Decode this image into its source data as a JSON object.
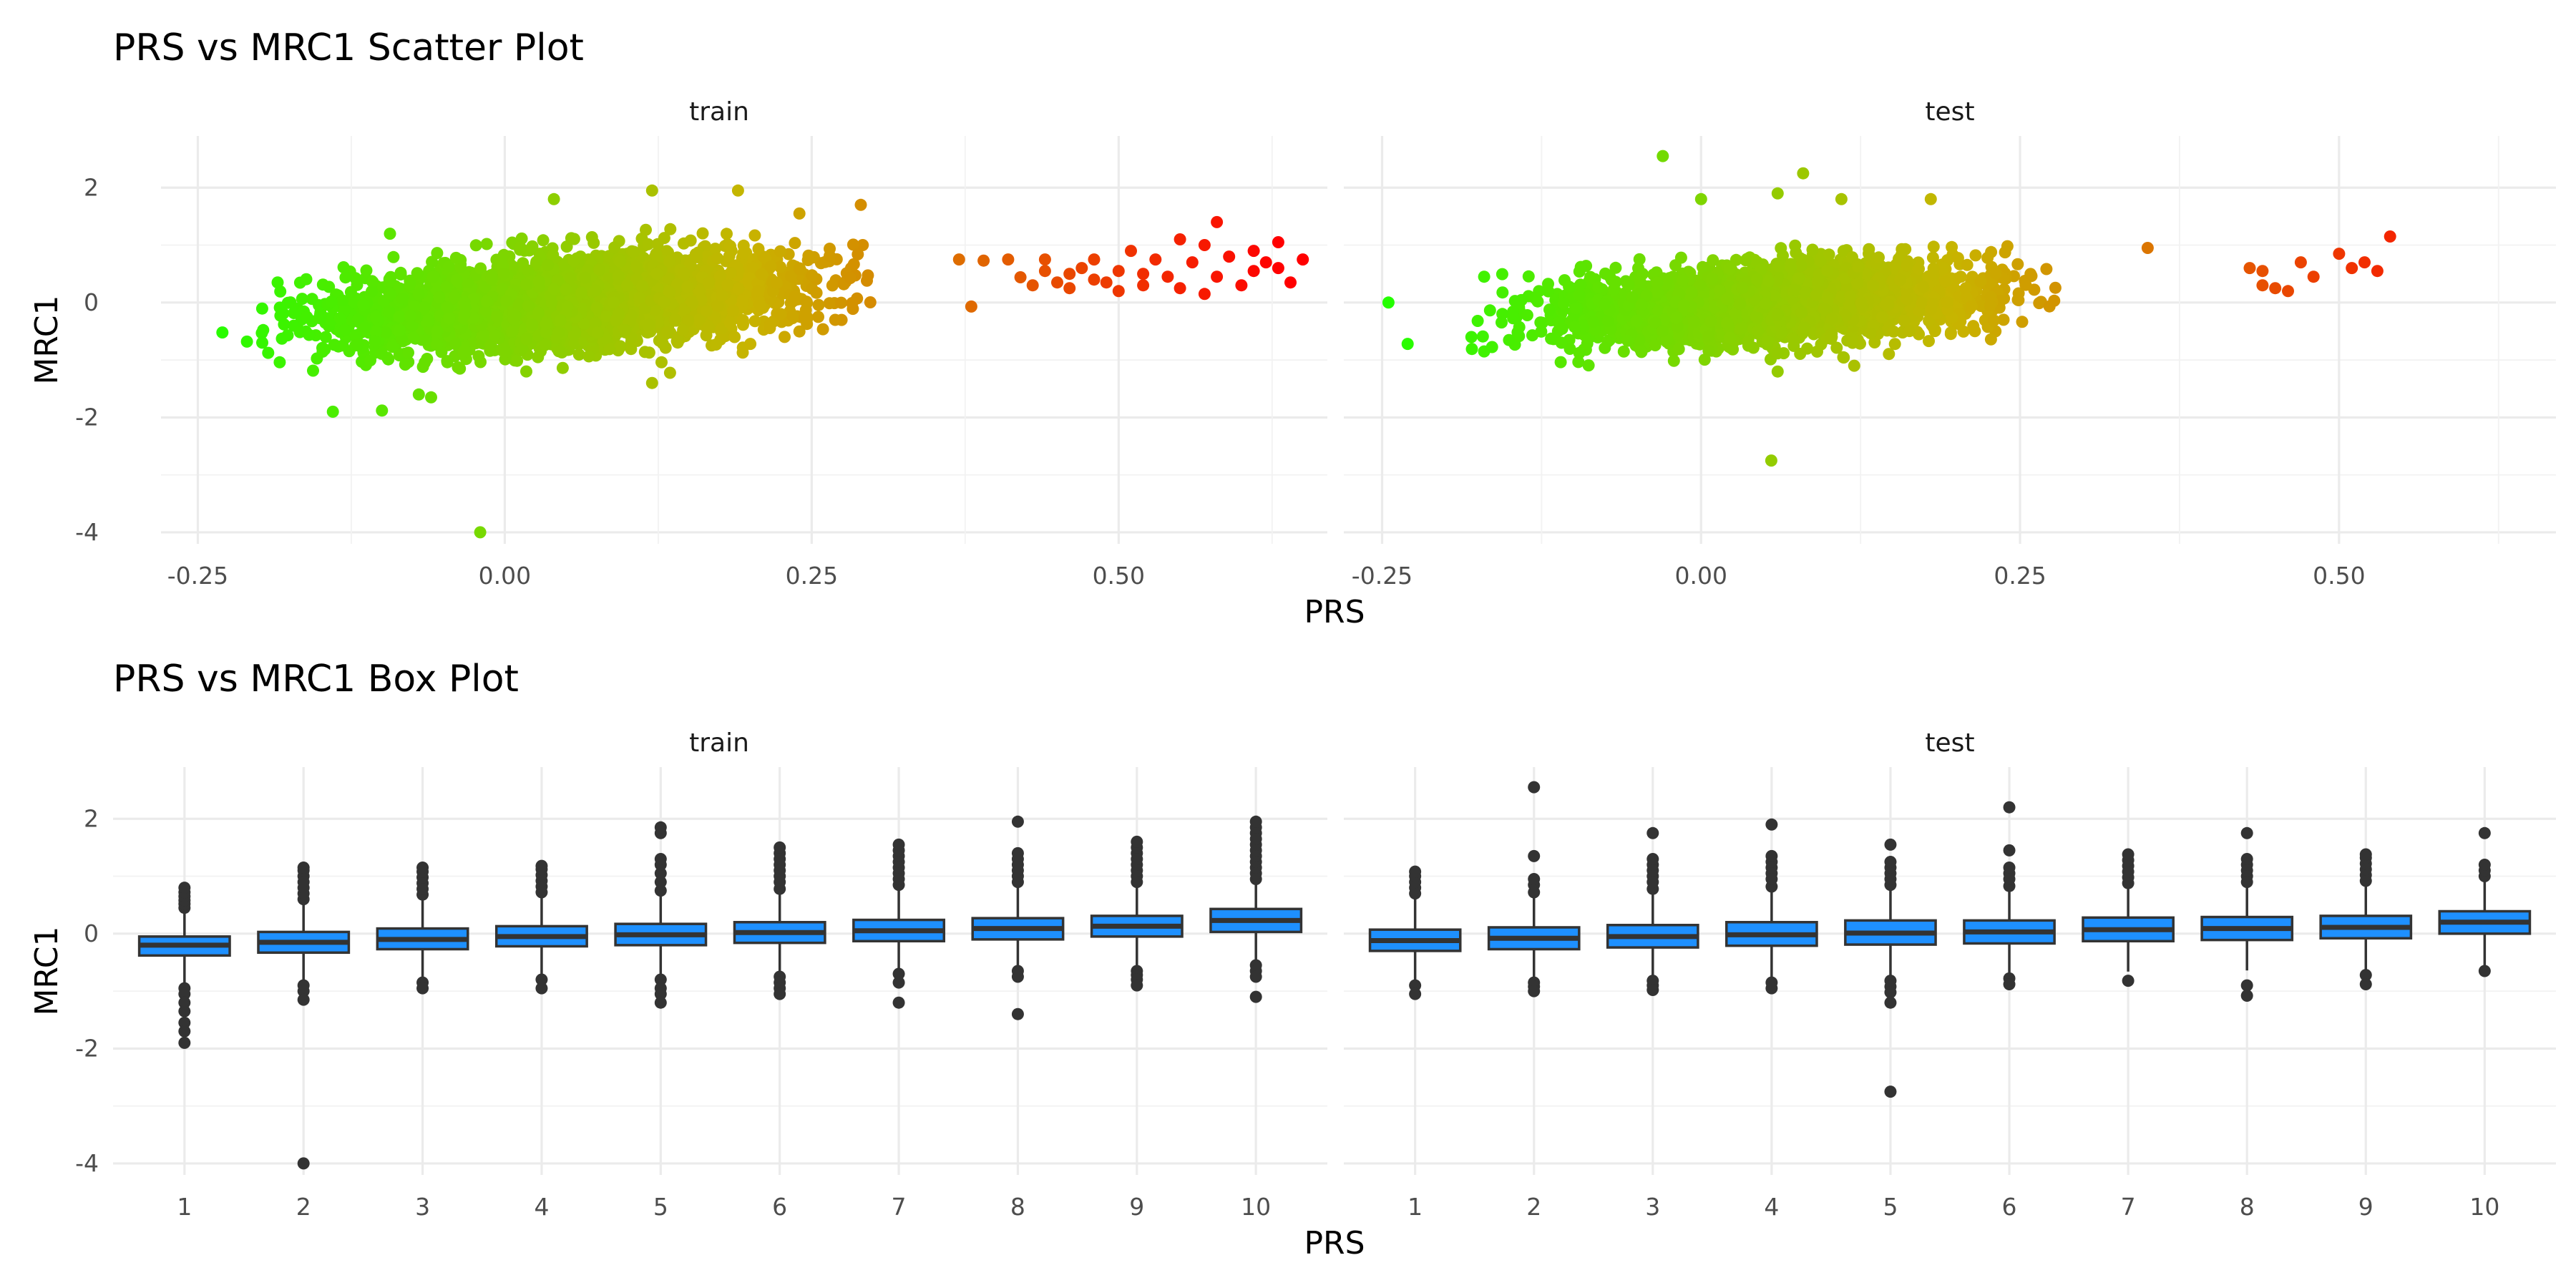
{
  "figure": {
    "scatter_title": "PRS vs MRC1 Scatter Plot",
    "box_title": "PRS vs MRC1 Box Plot",
    "panels": [
      "train",
      "test"
    ],
    "xlabel": "PRS",
    "ylabel": "MRC1"
  },
  "colors": {
    "low": "#22ff00",
    "mid": "#c8b400",
    "high": "#ff0000",
    "box_fill": "#1e90ff",
    "box_line": "#333333",
    "outlier": "#333333"
  },
  "chart_data": [
    {
      "type": "scatter",
      "title": "PRS vs MRC1 Scatter Plot",
      "xlabel": "PRS",
      "ylabel": "MRC1",
      "xlim": [
        -0.28,
        0.67
      ],
      "ylim": [
        -4.2,
        2.9
      ],
      "xticks": [
        -0.25,
        0.0,
        0.25,
        0.5
      ],
      "xtick_labels": [
        "-0.25",
        "0.00",
        "0.25",
        "0.50"
      ],
      "yticks": [
        -4,
        -2,
        0,
        2
      ],
      "ytick_labels": [
        "-4",
        "-2",
        "0",
        "2"
      ],
      "color_scale": {
        "var": "PRS",
        "low": "#22ff00",
        "mid": "#c8b400",
        "high": "#ff0000",
        "domain": [
          -0.25,
          0.2,
          0.63
        ]
      },
      "grid": true,
      "facets": [
        {
          "name": "train",
          "cloud": {
            "center": [
              0.05,
              0.0
            ],
            "x_sd": 0.09,
            "slope": 1.5,
            "y_sd": 0.38,
            "x_range": [
              -0.2,
              0.3
            ],
            "n": 3600
          },
          "points": [
            [
              -0.23,
              -0.52
            ],
            [
              -0.21,
              -0.68
            ],
            [
              -0.14,
              -1.9
            ],
            [
              -0.1,
              -1.88
            ],
            [
              -0.07,
              -1.6
            ],
            [
              -0.06,
              -1.65
            ],
            [
              -0.02,
              -4.0
            ],
            [
              0.04,
              1.8
            ],
            [
              0.12,
              1.95
            ],
            [
              0.19,
              1.95
            ],
            [
              0.24,
              1.55
            ],
            [
              0.29,
              1.7
            ],
            [
              0.12,
              -1.4
            ],
            [
              0.2,
              -0.72
            ],
            [
              0.37,
              0.75
            ],
            [
              0.38,
              -0.07
            ],
            [
              0.39,
              0.73
            ],
            [
              0.41,
              0.75
            ],
            [
              0.42,
              0.44
            ],
            [
              0.43,
              0.3
            ],
            [
              0.44,
              0.55
            ],
            [
              0.44,
              0.75
            ],
            [
              0.45,
              0.35
            ],
            [
              0.46,
              0.5
            ],
            [
              0.46,
              0.25
            ],
            [
              0.47,
              0.6
            ],
            [
              0.48,
              0.4
            ],
            [
              0.48,
              0.75
            ],
            [
              0.49,
              0.35
            ],
            [
              0.5,
              0.55
            ],
            [
              0.5,
              0.2
            ],
            [
              0.51,
              0.9
            ],
            [
              0.52,
              0.5
            ],
            [
              0.52,
              0.3
            ],
            [
              0.53,
              0.75
            ],
            [
              0.54,
              0.45
            ],
            [
              0.55,
              1.1
            ],
            [
              0.55,
              0.25
            ],
            [
              0.56,
              0.7
            ],
            [
              0.57,
              1.0
            ],
            [
              0.57,
              0.15
            ],
            [
              0.58,
              1.4
            ],
            [
              0.58,
              0.45
            ],
            [
              0.59,
              0.8
            ],
            [
              0.6,
              0.3
            ],
            [
              0.61,
              0.55
            ],
            [
              0.61,
              0.9
            ],
            [
              0.62,
              0.7
            ],
            [
              0.63,
              0.6
            ],
            [
              0.63,
              1.05
            ],
            [
              0.64,
              0.35
            ],
            [
              0.65,
              0.75
            ]
          ]
        },
        {
          "name": "test",
          "cloud": {
            "center": [
              0.055,
              0.0
            ],
            "x_sd": 0.08,
            "slope": 1.2,
            "y_sd": 0.33,
            "x_range": [
              -0.18,
              0.28
            ],
            "n": 2700
          },
          "points": [
            [
              -0.245,
              0.0
            ],
            [
              -0.23,
              -0.72
            ],
            [
              -0.18,
              -0.6
            ],
            [
              -0.17,
              -0.85
            ],
            [
              -0.17,
              0.45
            ],
            [
              -0.03,
              2.55
            ],
            [
              0.0,
              1.8
            ],
            [
              0.06,
              1.9
            ],
            [
              0.08,
              2.25
            ],
            [
              0.11,
              1.8
            ],
            [
              0.18,
              1.8
            ],
            [
              0.06,
              -1.2
            ],
            [
              0.055,
              -2.75
            ],
            [
              0.12,
              -1.1
            ],
            [
              0.35,
              0.95
            ],
            [
              0.43,
              0.6
            ],
            [
              0.44,
              0.3
            ],
            [
              0.44,
              0.55
            ],
            [
              0.45,
              0.25
            ],
            [
              0.46,
              0.2
            ],
            [
              0.47,
              0.7
            ],
            [
              0.48,
              0.45
            ],
            [
              0.5,
              0.85
            ],
            [
              0.51,
              0.6
            ],
            [
              0.52,
              0.7
            ],
            [
              0.53,
              0.55
            ],
            [
              0.54,
              1.15
            ]
          ]
        }
      ]
    },
    {
      "type": "box",
      "title": "PRS vs MRC1 Box Plot",
      "xlabel": "PRS",
      "ylabel": "MRC1",
      "categories": [
        "1",
        "2",
        "3",
        "4",
        "5",
        "6",
        "7",
        "8",
        "9",
        "10"
      ],
      "ylim": [
        -4.2,
        2.9
      ],
      "yticks": [
        -4,
        -2,
        0,
        2
      ],
      "ytick_labels": [
        "-4",
        "-2",
        "0",
        "2"
      ],
      "grid": true,
      "facets": [
        {
          "name": "train",
          "boxes": [
            {
              "q1": -0.38,
              "median": -0.2,
              "q3": -0.05,
              "lower": -0.87,
              "upper": 0.4,
              "outliers": [
                -0.95,
                -1.05,
                -1.2,
                -1.35,
                -1.55,
                -1.7,
                -1.9,
                0.45,
                0.52,
                0.58,
                0.65,
                0.72,
                0.8
              ]
            },
            {
              "q1": -0.33,
              "median": -0.15,
              "q3": 0.03,
              "lower": -0.85,
              "upper": 0.55,
              "outliers": [
                -0.9,
                -1.0,
                -1.15,
                -4.0,
                0.6,
                0.7,
                0.8,
                0.9,
                1.0,
                1.1,
                1.15
              ]
            },
            {
              "q1": -0.27,
              "median": -0.1,
              "q3": 0.09,
              "lower": -0.8,
              "upper": 0.62,
              "outliers": [
                -0.85,
                -0.95,
                0.68,
                0.78,
                0.88,
                0.98,
                1.08,
                1.15
              ]
            },
            {
              "q1": -0.22,
              "median": -0.05,
              "q3": 0.13,
              "lower": -0.75,
              "upper": 0.65,
              "outliers": [
                -0.8,
                -0.95,
                0.72,
                0.82,
                0.92,
                1.02,
                1.12,
                1.18
              ]
            },
            {
              "q1": -0.2,
              "median": -0.02,
              "q3": 0.17,
              "lower": -0.75,
              "upper": 0.7,
              "outliers": [
                -0.8,
                -0.95,
                -1.05,
                -1.2,
                0.75,
                0.9,
                1.05,
                1.2,
                1.3,
                1.75,
                1.85
              ]
            },
            {
              "q1": -0.16,
              "median": 0.02,
              "q3": 0.2,
              "lower": -0.7,
              "upper": 0.72,
              "outliers": [
                -0.75,
                -0.85,
                -0.95,
                -1.05,
                0.78,
                0.9,
                1.0,
                1.1,
                1.2,
                1.3,
                1.4,
                1.5
              ]
            },
            {
              "q1": -0.13,
              "median": 0.05,
              "q3": 0.24,
              "lower": -0.65,
              "upper": 0.78,
              "outliers": [
                -0.7,
                -0.85,
                -1.2,
                0.85,
                0.95,
                1.05,
                1.15,
                1.25,
                1.35,
                1.45,
                1.55
              ]
            },
            {
              "q1": -0.1,
              "median": 0.09,
              "q3": 0.27,
              "lower": -0.6,
              "upper": 0.82,
              "outliers": [
                -0.65,
                -0.75,
                -1.4,
                0.9,
                1.0,
                1.1,
                1.2,
                1.3,
                1.4,
                1.95
              ]
            },
            {
              "q1": -0.05,
              "median": 0.13,
              "q3": 0.31,
              "lower": -0.58,
              "upper": 0.85,
              "outliers": [
                -0.65,
                -0.72,
                -0.8,
                -0.9,
                0.9,
                1.0,
                1.1,
                1.2,
                1.3,
                1.4,
                1.5,
                1.6
              ]
            },
            {
              "q1": 0.03,
              "median": 0.23,
              "q3": 0.43,
              "lower": -0.48,
              "upper": 0.9,
              "outliers": [
                -0.55,
                -0.65,
                -0.75,
                -1.1,
                0.95,
                1.05,
                1.15,
                1.25,
                1.35,
                1.45,
                1.55,
                1.65,
                1.75,
                1.85,
                1.95
              ]
            }
          ]
        },
        {
          "name": "test",
          "boxes": [
            {
              "q1": -0.3,
              "median": -0.12,
              "q3": 0.07,
              "lower": -0.85,
              "upper": 0.62,
              "outliers": [
                -0.9,
                -1.05,
                0.7,
                0.8,
                0.9,
                1.0,
                1.08
              ]
            },
            {
              "q1": -0.27,
              "median": -0.08,
              "q3": 0.11,
              "lower": -0.8,
              "upper": 0.65,
              "outliers": [
                -0.85,
                -0.92,
                -1.0,
                0.72,
                0.85,
                0.95,
                1.35,
                2.55
              ]
            },
            {
              "q1": -0.24,
              "median": -0.05,
              "q3": 0.15,
              "lower": -0.78,
              "upper": 0.7,
              "outliers": [
                -0.82,
                -0.9,
                -0.98,
                0.78,
                0.9,
                1.0,
                1.1,
                1.2,
                1.3,
                1.75
              ]
            },
            {
              "q1": -0.21,
              "median": -0.02,
              "q3": 0.2,
              "lower": -0.78,
              "upper": 0.75,
              "outliers": [
                -0.85,
                -0.95,
                0.82,
                0.95,
                1.05,
                1.15,
                1.25,
                1.35,
                1.9
              ]
            },
            {
              "q1": -0.19,
              "median": 0.01,
              "q3": 0.23,
              "lower": -0.75,
              "upper": 0.78,
              "outliers": [
                -0.82,
                -0.92,
                -1.02,
                -1.2,
                -2.75,
                0.85,
                0.95,
                1.05,
                1.15,
                1.25,
                1.55
              ]
            },
            {
              "q1": -0.17,
              "median": 0.03,
              "q3": 0.23,
              "lower": -0.72,
              "upper": 0.76,
              "outliers": [
                -0.78,
                -0.88,
                0.83,
                0.95,
                1.05,
                1.15,
                1.45,
                2.2
              ]
            },
            {
              "q1": -0.13,
              "median": 0.07,
              "q3": 0.28,
              "lower": -0.66,
              "upper": 0.8,
              "outliers": [
                -0.82,
                0.88,
                0.98,
                1.08,
                1.18,
                1.28,
                1.38
              ]
            },
            {
              "q1": -0.11,
              "median": 0.09,
              "q3": 0.29,
              "lower": -0.64,
              "upper": 0.82,
              "outliers": [
                -0.9,
                -1.08,
                0.9,
                1.0,
                1.1,
                1.2,
                1.3,
                1.75
              ]
            },
            {
              "q1": -0.08,
              "median": 0.11,
              "q3": 0.31,
              "lower": -0.62,
              "upper": 0.83,
              "outliers": [
                -0.72,
                -0.88,
                0.92,
                1.02,
                1.12,
                1.22,
                1.32,
                1.38
              ]
            },
            {
              "q1": 0.0,
              "median": 0.2,
              "q3": 0.39,
              "lower": -0.55,
              "upper": 0.9,
              "outliers": [
                -0.65,
                1.0,
                1.1,
                1.2,
                1.75
              ]
            }
          ]
        }
      ]
    }
  ]
}
